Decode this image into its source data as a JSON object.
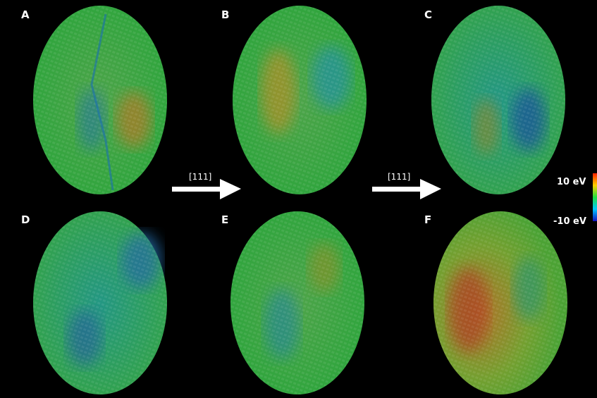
{
  "panels": [
    {
      "label": "A"
    },
    {
      "label": "B"
    },
    {
      "label": "C"
    },
    {
      "label": "D"
    },
    {
      "label": "E"
    },
    {
      "label": "F"
    }
  ],
  "arrows": [
    {
      "label": "[111]"
    },
    {
      "label": "[111]"
    }
  ],
  "colorbar": {
    "max_label": "10 eV",
    "min_label": "-10 eV"
  }
}
